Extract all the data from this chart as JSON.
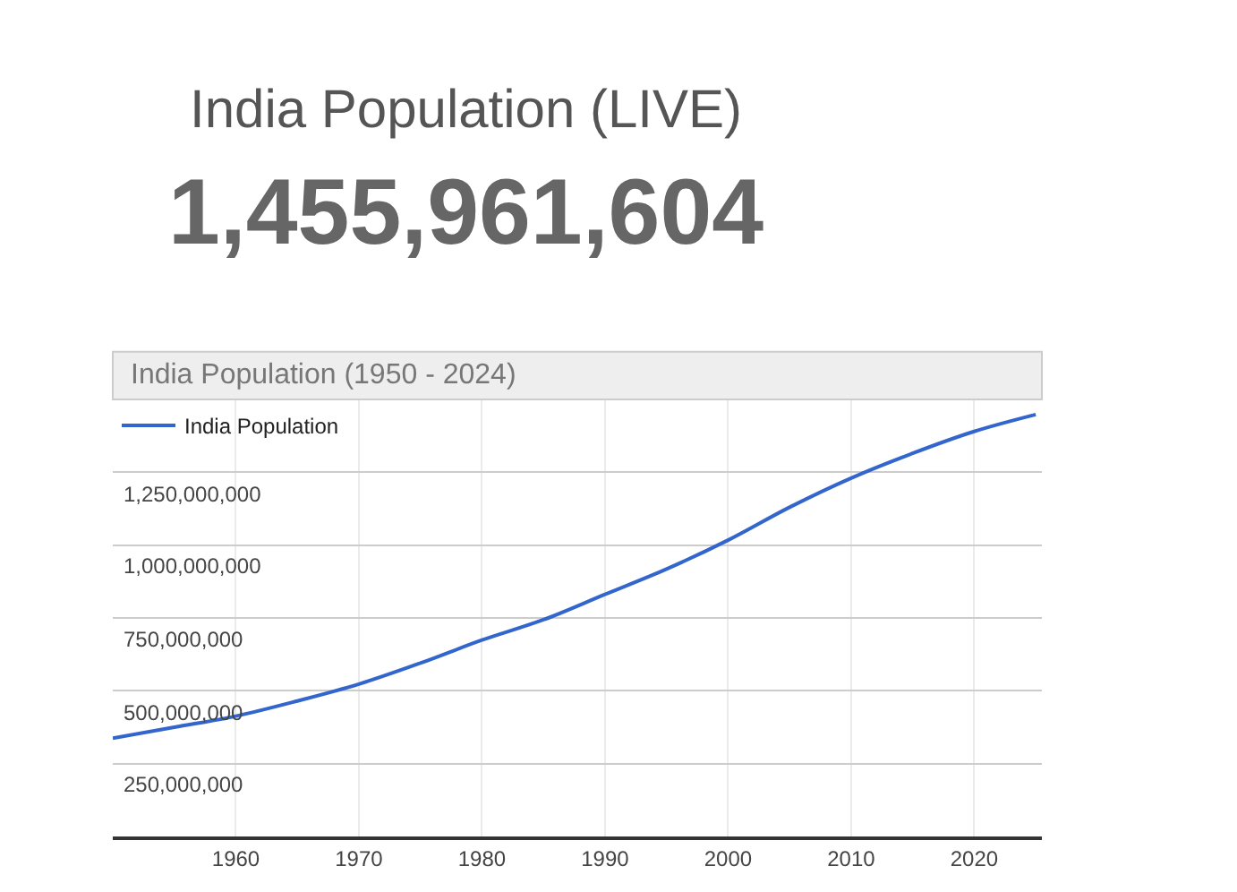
{
  "chart_data": {
    "type": "line",
    "title": "India Population (1950 - 2024)",
    "annotations": [
      "India Population (LIVE)",
      "1,455,961,604"
    ],
    "x": [
      1950,
      1955,
      1960,
      1965,
      1970,
      1975,
      1980,
      1985,
      1990,
      1995,
      2000,
      2005,
      2010,
      2015,
      2020,
      2025
    ],
    "series": [
      {
        "name": "India Population",
        "color": "#3366cc",
        "values": [
          337000000,
          375000000,
          413000000,
          465000000,
          523000000,
          595000000,
          674000000,
          744000000,
          831000000,
          918000000,
          1017000000,
          1130000000,
          1230000000,
          1315000000,
          1390000000,
          1448000000
        ]
      }
    ],
    "xlim": [
      1950,
      2025.5
    ],
    "xticks": [
      1960,
      1970,
      1980,
      1990,
      2000,
      2010,
      2020
    ],
    "ylim": [
      0,
      1500000000
    ],
    "yticks": [
      {
        "value": 250000000,
        "label": "250,000,000"
      },
      {
        "value": 500000000,
        "label": "500,000,000"
      },
      {
        "value": 750000000,
        "label": "750,000,000"
      },
      {
        "value": 1000000000,
        "label": "1,000,000,000"
      },
      {
        "value": 1250000000,
        "label": "1,250,000,000"
      }
    ],
    "grid": true,
    "legend": "top left",
    "marker": "none",
    "line_style": "solid"
  }
}
